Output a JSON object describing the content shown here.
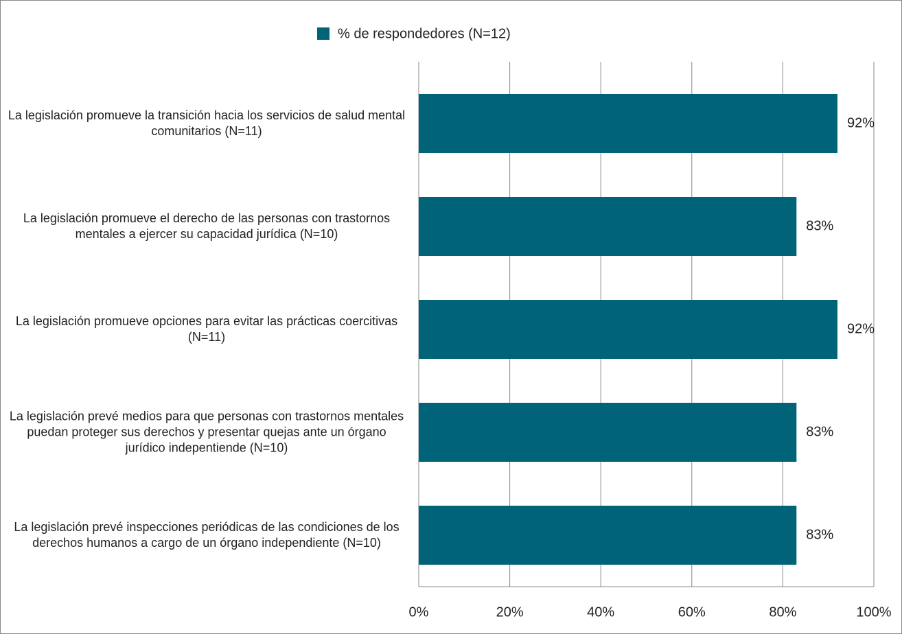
{
  "chart_data": {
    "type": "barh",
    "legend": "% de respondedores (N=12)",
    "color": "#006378",
    "categories": [
      "La legislación promueve la transición hacia los servicios de salud mental comunitarios (N=11)",
      "La legislación promueve el derecho de las personas con trastornos mentales a ejercer su capacidad jurídica (N=10)",
      "La legislación promueve opciones para evitar las prácticas coercitivas (N=11)",
      "La legislación prevé medios para que personas con trastornos mentales puedan proteger sus derechos y presentar quejas ante un órgano jurídico indepentiende (N=10)",
      "La legislación prevé inspecciones periódicas de las condiciones de los derechos humanos a cargo de un órgano independiente (N=10)"
    ],
    "values": [
      92,
      83,
      92,
      83,
      83
    ],
    "value_labels": [
      "92%",
      "83%",
      "92%",
      "83%",
      "83%"
    ],
    "xlim": [
      0,
      100
    ],
    "xticks": [
      {
        "value": 0,
        "label": "0%"
      },
      {
        "value": 20,
        "label": "20%"
      },
      {
        "value": 40,
        "label": "40%"
      },
      {
        "value": 60,
        "label": "60%"
      },
      {
        "value": 80,
        "label": "80%"
      },
      {
        "value": 100,
        "label": "100%"
      }
    ],
    "grid": true
  }
}
